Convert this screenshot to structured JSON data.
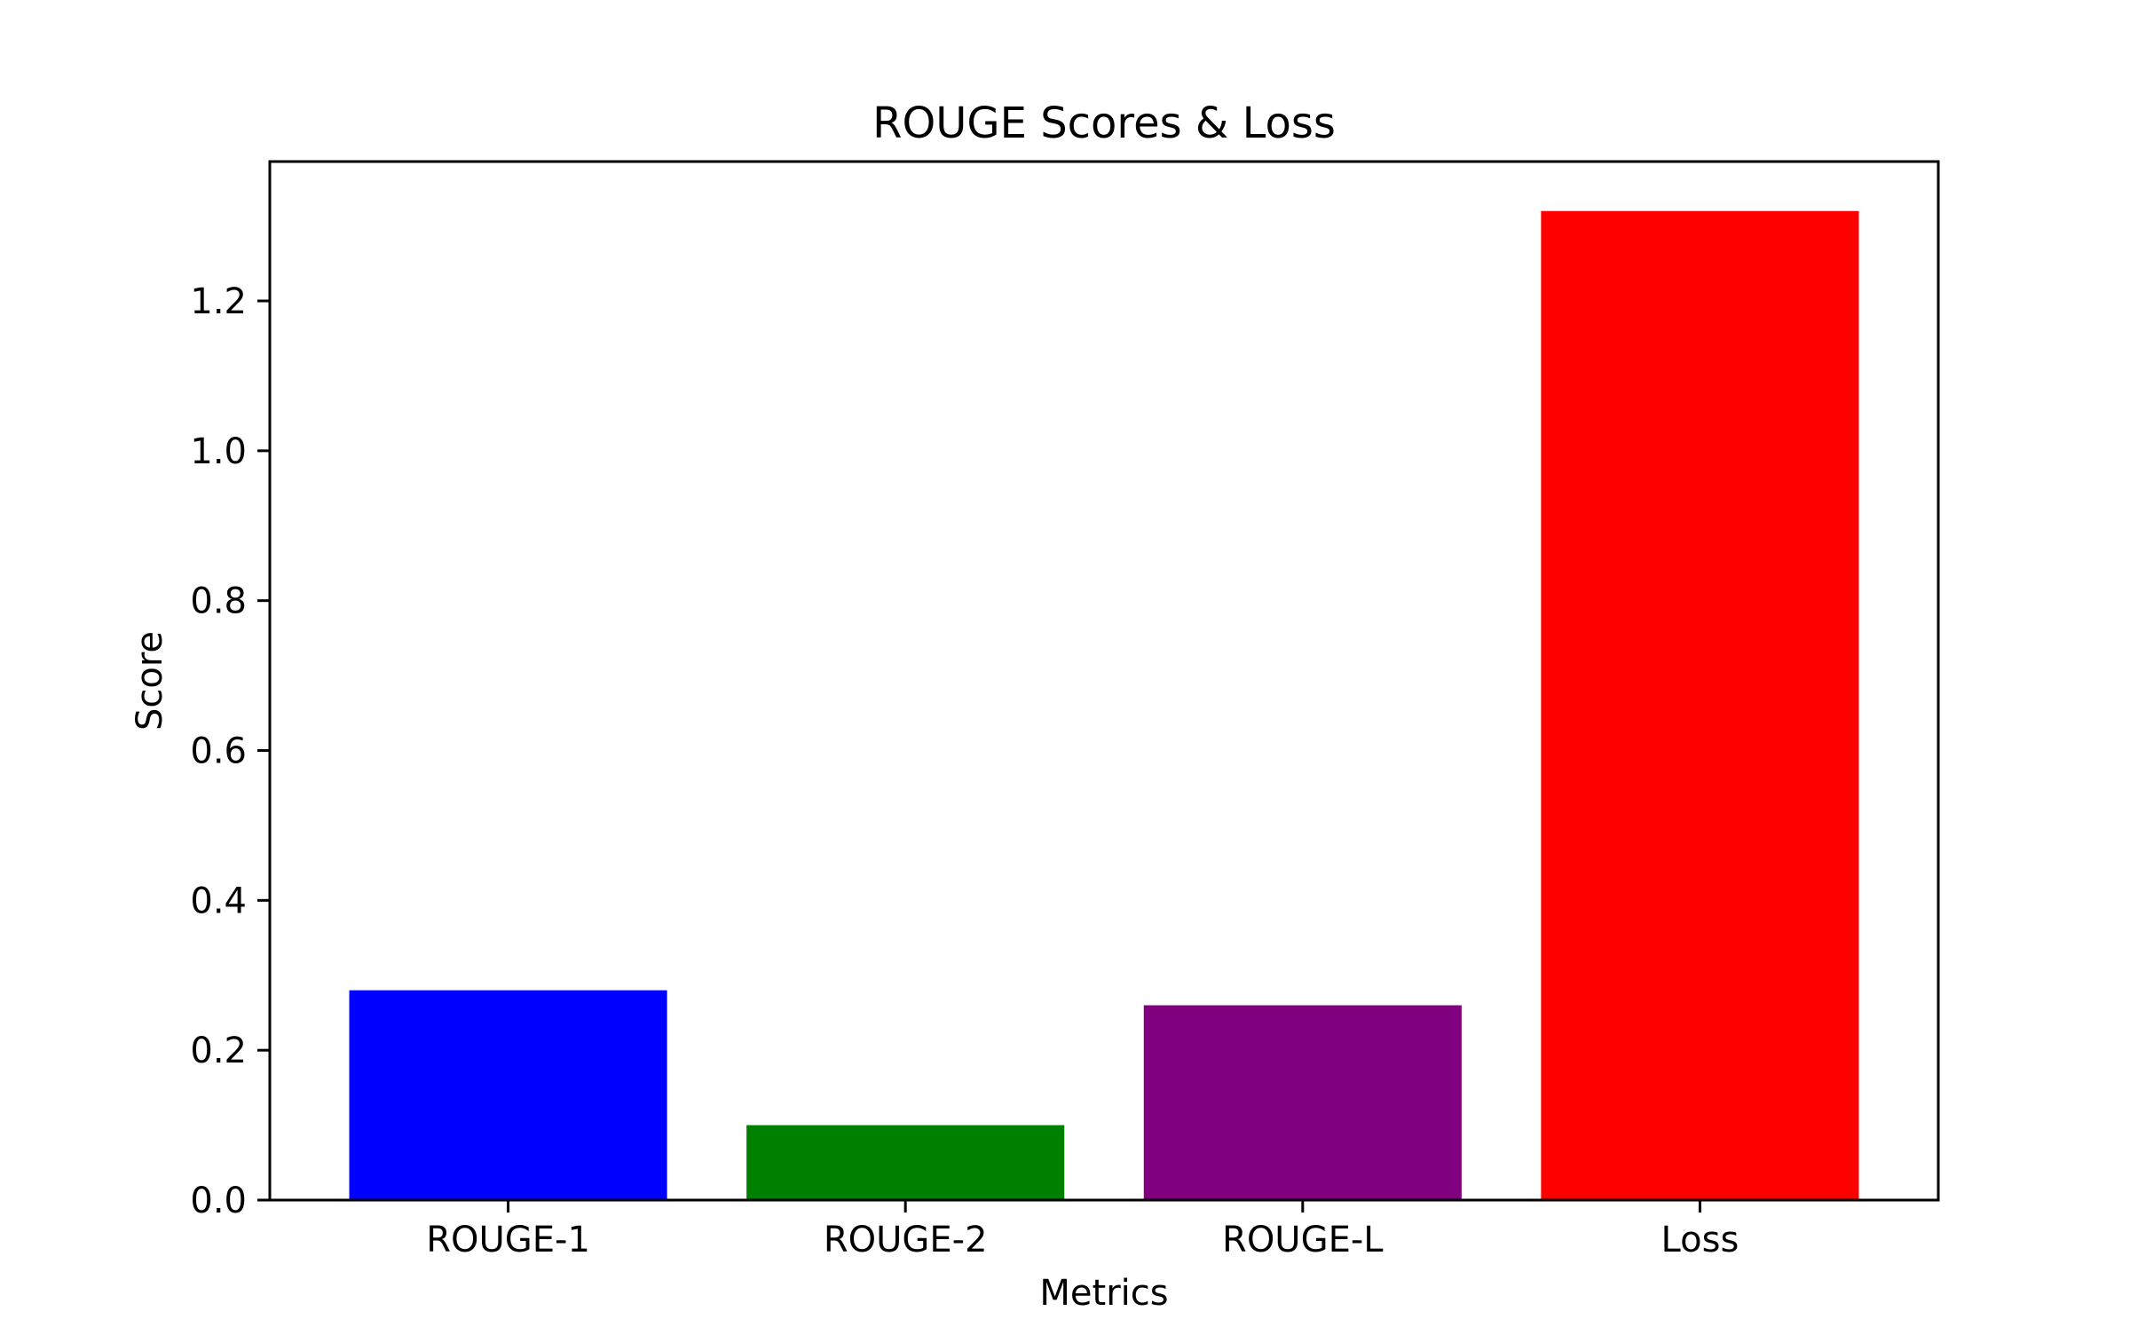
{
  "chart_data": {
    "type": "bar",
    "title": "ROUGE Scores & Loss",
    "xlabel": "Metrics",
    "ylabel": "Score",
    "categories": [
      "ROUGE-1",
      "ROUGE-2",
      "ROUGE-L",
      "Loss"
    ],
    "values": [
      0.28,
      0.1,
      0.26,
      1.32
    ],
    "colors": [
      "#0000ff",
      "#008000",
      "#800080",
      "#ff0000"
    ],
    "ylim": [
      0,
      1.386
    ],
    "yticks": [
      0.0,
      0.2,
      0.4,
      0.6,
      0.8,
      1.0,
      1.2
    ],
    "ytick_labels": [
      "0.0",
      "0.2",
      "0.4",
      "0.6",
      "0.8",
      "1.0",
      "1.2"
    ],
    "grid": false,
    "legend": "none"
  }
}
